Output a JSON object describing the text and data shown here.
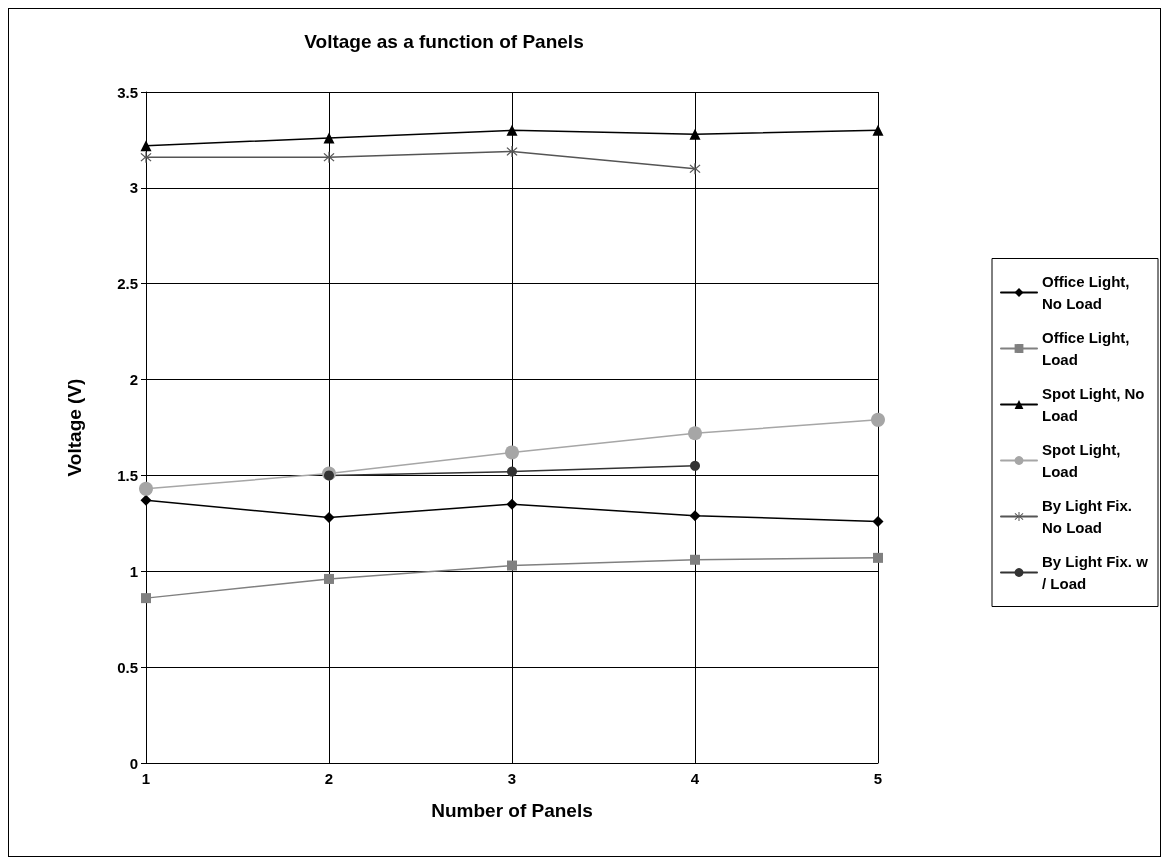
{
  "chart_data": {
    "type": "line",
    "title": "Voltage as a function of Panels",
    "xlabel": "Number of Panels",
    "ylabel": "Voltage (V)",
    "x": [
      1,
      2,
      3,
      4,
      5
    ],
    "xlim": [
      1,
      5
    ],
    "xticks": [
      1,
      2,
      3,
      4,
      5
    ],
    "ylim": [
      0,
      3.5
    ],
    "yticks": [
      0,
      0.5,
      1,
      1.5,
      2,
      2.5,
      3,
      3.5
    ],
    "grid": true,
    "legend": "right",
    "series": [
      {
        "name": "Office Light, No Load",
        "color": "#000000",
        "marker": "diamond",
        "values": [
          1.37,
          1.28,
          1.35,
          1.29,
          1.26
        ]
      },
      {
        "name": "Office Light, Load",
        "color": "#808080",
        "marker": "square",
        "values": [
          0.86,
          0.96,
          1.03,
          1.06,
          1.07
        ]
      },
      {
        "name": "Spot Light, No Load",
        "color": "#000000",
        "marker": "triangle",
        "values": [
          3.22,
          3.26,
          3.3,
          3.28,
          3.3
        ]
      },
      {
        "name": "Spot Light, Load",
        "color": "#a6a6a6",
        "marker": "circle",
        "values": [
          1.43,
          1.51,
          1.62,
          1.72,
          1.79
        ]
      },
      {
        "name": "By Light Fix. No Load",
        "color": "#555555",
        "marker": "star",
        "values": [
          3.16,
          3.16,
          3.19,
          3.1,
          null
        ]
      },
      {
        "name": "By Light Fix. w/ Load",
        "color": "#333333",
        "marker": "circle",
        "values": [
          null,
          1.5,
          1.52,
          1.55,
          null
        ]
      }
    ]
  }
}
